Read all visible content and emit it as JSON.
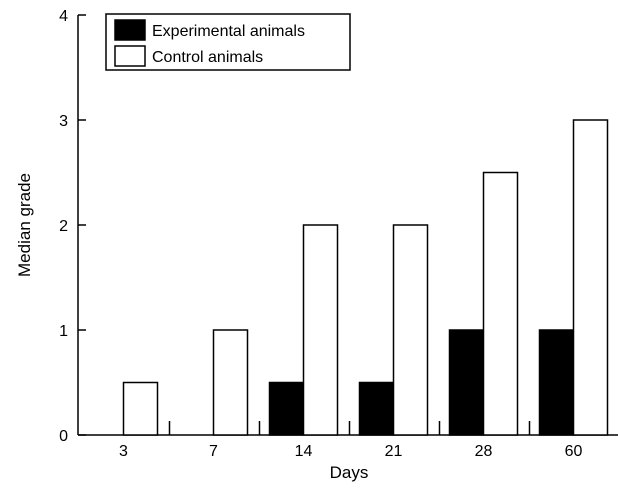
{
  "chart_data": {
    "type": "bar",
    "title": "",
    "xlabel": "Days",
    "ylabel": "Median grade",
    "categories": [
      "3",
      "7",
      "14",
      "21",
      "28",
      "60"
    ],
    "series": [
      {
        "name": "Experimental animals",
        "color": "#000000",
        "values": [
          0,
          0,
          0.5,
          0.5,
          1,
          1
        ]
      },
      {
        "name": "Control animals",
        "color": "#ffffff",
        "values": [
          0.5,
          1,
          2,
          2,
          2.5,
          3
        ]
      }
    ],
    "ylim": [
      0,
      4
    ],
    "yticks": [
      0,
      1,
      2,
      3,
      4
    ],
    "grid": false,
    "legend_position": "top-left"
  }
}
